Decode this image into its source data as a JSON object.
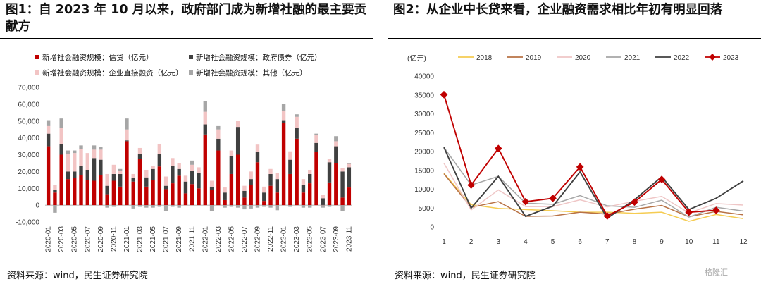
{
  "left": {
    "title": "图1：自 2023 年 10 月以来，政府部门成为新增社融的最主要贡献方",
    "source": "资料来源：wind，民生证券研究院",
    "chart_data": {
      "type": "bar",
      "stacked": true,
      "ylim": [
        -10000,
        70000
      ],
      "yticks": [
        -10000,
        0,
        10000,
        20000,
        30000,
        40000,
        50000,
        60000,
        70000
      ],
      "ytick_labels": [
        "-10,000",
        "0",
        "10,000",
        "20,000",
        "30,000",
        "40,000",
        "50,000",
        "60,000",
        "70,000"
      ],
      "categories": [
        "2020-01",
        "2020-02",
        "2020-03",
        "2020-04",
        "2020-05",
        "2020-06",
        "2020-07",
        "2020-08",
        "2020-09",
        "2020-10",
        "2020-11",
        "2020-12",
        "2021-01",
        "2021-02",
        "2021-03",
        "2021-04",
        "2021-05",
        "2021-06",
        "2021-07",
        "2021-08",
        "2021-09",
        "2021-10",
        "2021-11",
        "2021-12",
        "2022-01",
        "2022-02",
        "2022-03",
        "2022-04",
        "2022-05",
        "2022-06",
        "2022-07",
        "2022-08",
        "2022-09",
        "2022-10",
        "2022-11",
        "2022-12",
        "2023-01",
        "2023-02",
        "2023-03",
        "2023-04",
        "2023-05",
        "2023-06",
        "2023-07",
        "2023-08",
        "2023-09",
        "2023-10",
        "2023-11"
      ],
      "xtick_labels": [
        "2020-01",
        "2020-03",
        "2020-05",
        "2020-07",
        "2020-09",
        "2020-11",
        "2021-01",
        "2021-03",
        "2021-05",
        "2021-07",
        "2021-09",
        "2021-11",
        "2022-01",
        "2022-03",
        "2022-05",
        "2022-07",
        "2022-09",
        "2022-11",
        "2023-01",
        "2023-03",
        "2023-05",
        "2023-07",
        "2023-09",
        "2023-11"
      ],
      "legend": [
        {
          "name": "新增社会融资规模：信贷（亿元）",
          "color": "#c00000"
        },
        {
          "name": "新增社会融资规模：政府债券（亿元）",
          "color": "#404040"
        },
        {
          "name": "新增社会融资规模：企业直接融资（亿元）",
          "color": "#f2c4c4"
        },
        {
          "name": "新增社会融资规模：其他（亿元）",
          "color": "#a6a6a6"
        }
      ],
      "series": [
        {
          "name": "新增社会融资规模：信贷（亿元）",
          "values": [
            35000,
            7500,
            30000,
            15500,
            16000,
            18000,
            15000,
            14500,
            18000,
            6500,
            14500,
            11000,
            38000,
            14000,
            27500,
            11000,
            15000,
            23000,
            9500,
            13000,
            17500,
            7000,
            12500,
            10000,
            42000,
            9000,
            32500,
            3000,
            18500,
            30000,
            4500,
            12000,
            25500,
            2500,
            11500,
            7500,
            49000,
            18500,
            39500,
            7500,
            13000,
            31500,
            100,
            13500,
            25000,
            4500,
            10500
          ]
        },
        {
          "name": "新增社会融资规模：政府债券（亿元）",
          "values": [
            7500,
            1500,
            6500,
            4500,
            4000,
            5500,
            6000,
            13500,
            9000,
            5000,
            4000,
            7500,
            500,
            2000,
            3000,
            5500,
            6500,
            7500,
            2000,
            10500,
            4000,
            7000,
            8000,
            9000,
            6000,
            2000,
            7000,
            4500,
            10500,
            16500,
            4000,
            3500,
            6000,
            5000,
            7000,
            8000,
            1500,
            8500,
            6500,
            4500,
            5500,
            5500,
            4000,
            12000,
            10000,
            15500,
            12000
          ]
        },
        {
          "name": "新增社会融资规模：企业直接融资（亿元）",
          "values": [
            4500,
            3000,
            9500,
            10500,
            11000,
            10000,
            10000,
            5000,
            6000,
            7000,
            5500,
            2000,
            6500,
            2500,
            3500,
            4500,
            2000,
            6000,
            5500,
            4500,
            3500,
            3500,
            3500,
            3500,
            7500,
            3500,
            5500,
            3000,
            3500,
            3500,
            3000,
            4500,
            4500,
            3500,
            3000,
            3500,
            5500,
            5000,
            6500,
            3500,
            2500,
            4500,
            2000,
            2000,
            3000,
            2000,
            2000
          ]
        },
        {
          "name": "新增社会融资规模：其他（亿元）",
          "values": [
            3500,
            -4500,
            5500,
            2000,
            1500,
            2000,
            0,
            2500,
            1500,
            -1500,
            -1000,
            1000,
            6500,
            -2000,
            -1000,
            -1500,
            -1500,
            -1000,
            -3500,
            -1000,
            -1500,
            0,
            2500,
            0,
            6500,
            -3500,
            2000,
            -1500,
            -1000,
            -1500,
            -2500,
            -2000,
            -1500,
            -1000,
            -1500,
            -3000,
            4000,
            -1000,
            1500,
            -1500,
            -1500,
            1000,
            -1500,
            -1000,
            3000,
            -3500,
            500
          ]
        }
      ]
    }
  },
  "right": {
    "title": "图2：从企业中长贷来看，企业融资需求相比年初有明显回落",
    "source": "资料来源：wind，民生证券研究院",
    "chart_data": {
      "type": "line",
      "ylabel": "(亿元)",
      "ylim": [
        0,
        40000
      ],
      "yticks": [
        0,
        5000,
        10000,
        15000,
        20000,
        25000,
        30000,
        35000,
        40000
      ],
      "ytick_labels": [
        "0",
        "5000",
        "10000",
        "15000",
        "20000",
        "25000",
        "30000",
        "35000",
        "40000"
      ],
      "x": [
        1,
        2,
        3,
        4,
        5,
        6,
        7,
        8,
        9,
        10,
        11,
        12
      ],
      "xtick_labels": [
        "1",
        "2",
        "3",
        "4",
        "5",
        "6",
        "7",
        "8",
        "9",
        "10",
        "11",
        "12"
      ],
      "series": [
        {
          "name": "2018",
          "color": "#f5cc52",
          "values": [
            14200,
            5900,
            4900,
            4600,
            4300,
            3900,
            3900,
            3600,
            3900,
            1500,
            3300,
            2200
          ]
        },
        {
          "name": "2019",
          "color": "#b87245",
          "values": [
            14100,
            5200,
            6700,
            2800,
            2900,
            3900,
            3400,
            4700,
            5700,
            2700,
            4100,
            3200
          ]
        },
        {
          "name": "2020",
          "color": "#efc6c6",
          "values": [
            16900,
            4500,
            9800,
            5400,
            5400,
            7200,
            5300,
            6800,
            8100,
            3700,
            6200,
            5800
          ]
        },
        {
          "name": "2021",
          "color": "#a6a6a6",
          "values": [
            21100,
            11100,
            13400,
            6300,
            6000,
            8300,
            5600,
            5200,
            7100,
            2600,
            5200,
            4200
          ]
        },
        {
          "name": "2022",
          "color": "#404040",
          "values": [
            21100,
            5000,
            13400,
            2800,
            5500,
            14600,
            2300,
            7200,
            13300,
            4600,
            7600,
            12200
          ]
        },
        {
          "name": "2023",
          "color": "#c00000",
          "values": [
            35100,
            11100,
            20800,
            6700,
            7600,
            15900,
            2900,
            6600,
            12600,
            3900,
            4400,
            null
          ]
        }
      ]
    }
  },
  "watermark": "格隆汇"
}
